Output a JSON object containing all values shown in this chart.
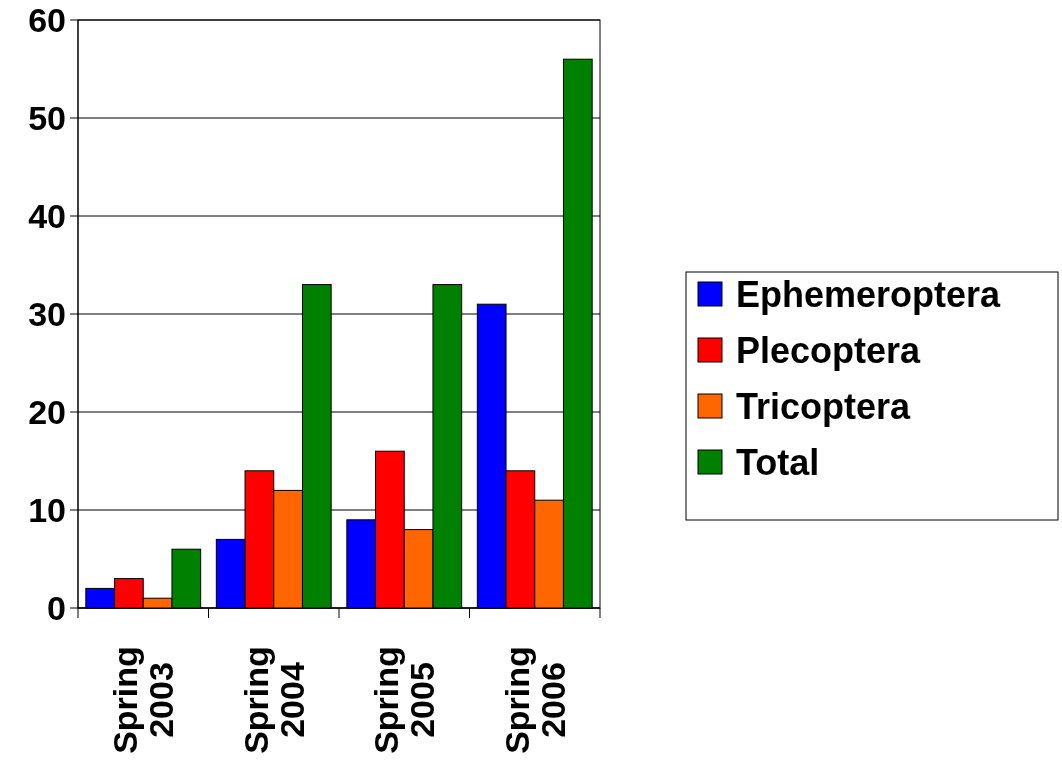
{
  "chart_data": {
    "type": "bar",
    "categories": [
      "Spring 2003",
      "Spring 2004",
      "Spring 2005",
      "Spring 2006"
    ],
    "series": [
      {
        "name": "Ephemeroptera",
        "color": "#0000ff",
        "values": [
          2,
          7,
          9,
          31
        ]
      },
      {
        "name": "Plecoptera",
        "color": "#ff0000",
        "values": [
          3,
          14,
          16,
          14
        ]
      },
      {
        "name": "Tricoptera",
        "color": "#ff6600",
        "values": [
          1,
          12,
          8,
          11
        ]
      },
      {
        "name": "Total",
        "color": "#008000",
        "values": [
          6,
          33,
          33,
          56
        ]
      }
    ],
    "ylim": [
      0,
      60
    ],
    "yticks": [
      0,
      10,
      20,
      30,
      40,
      50,
      60
    ],
    "grid": "y",
    "legend": "right"
  }
}
